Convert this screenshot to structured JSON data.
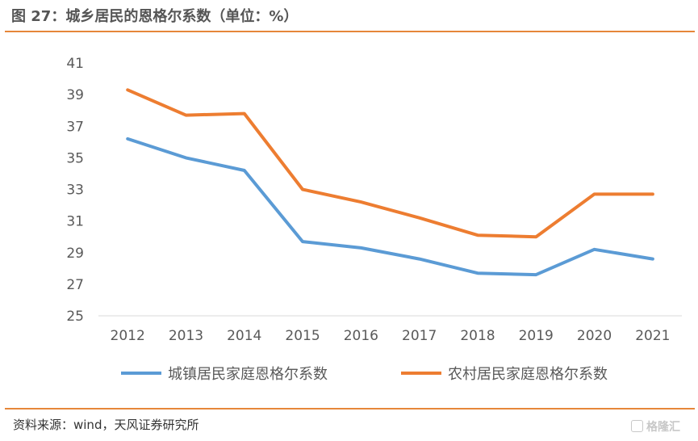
{
  "header": {
    "title": "图 27：城乡居民的恩格尔系数（单位：%）"
  },
  "footer": {
    "source": "资料来源：wind，天风证券研究所",
    "logo": "格隆汇"
  },
  "colors": {
    "accent_rule": "#e6873a",
    "series_urban": "#5b9bd5",
    "series_rural": "#ed7d31",
    "axis": "#d9d9d9"
  },
  "chart_data": {
    "type": "line",
    "title": "",
    "xlabel": "",
    "ylabel": "",
    "x": [
      "2012",
      "2013",
      "2014",
      "2015",
      "2016",
      "2017",
      "2018",
      "2019",
      "2020",
      "2021"
    ],
    "ylim": [
      25,
      41
    ],
    "yticks": [
      "25",
      "27",
      "29",
      "31",
      "33",
      "35",
      "37",
      "39",
      "41"
    ],
    "grid": false,
    "legend_position": "bottom",
    "series": [
      {
        "name": "城镇居民家庭恩格尔系数",
        "color": "#5b9bd5",
        "values": [
          36.2,
          35.0,
          34.2,
          29.7,
          29.3,
          28.6,
          27.7,
          27.6,
          29.2,
          28.6
        ]
      },
      {
        "name": "农村居民家庭恩格尔系数",
        "color": "#ed7d31",
        "values": [
          39.3,
          37.7,
          37.8,
          33.0,
          32.2,
          31.2,
          30.1,
          30.0,
          32.7,
          32.7
        ]
      }
    ]
  }
}
